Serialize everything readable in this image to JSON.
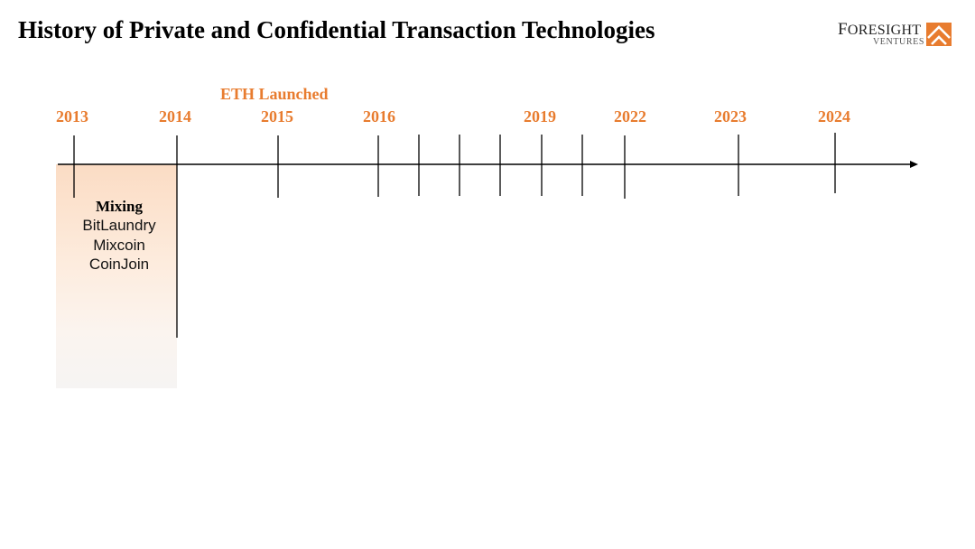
{
  "title": "History of Private and Confidential Transaction Technologies",
  "logo": {
    "first_letter": "F",
    "rest": "ORESIGHT",
    "subtitle": "VENTURES",
    "brand_color": "#e87c2f"
  },
  "accent_color": "#e87c2f",
  "years": [
    {
      "label": "2013",
      "x": 2013
    },
    {
      "label": "2014",
      "x": 2014
    },
    {
      "label": "2015",
      "x": 2015
    },
    {
      "label": "2016",
      "x": 2016
    },
    {
      "label": "2019",
      "x": 2019
    },
    {
      "label": "2022",
      "x": 2022
    },
    {
      "label": "2023",
      "x": 2023
    },
    {
      "label": "2024",
      "x": 2024
    }
  ],
  "event_label": "ETH Launched",
  "mixing": {
    "heading": "Mixing",
    "items": [
      "BitLaundry",
      "Mixcoin",
      "CoinJoin"
    ]
  }
}
